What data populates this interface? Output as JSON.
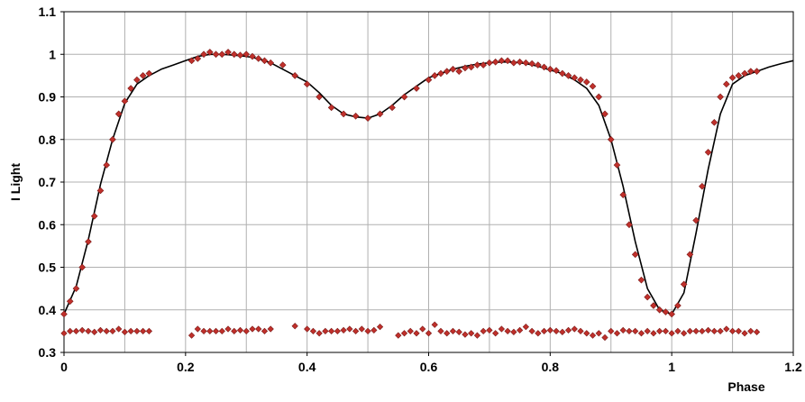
{
  "chart_data": {
    "type": "scatter",
    "title": "",
    "xlabel": "Phase",
    "ylabel": "I Light",
    "xlim": [
      0,
      1.2
    ],
    "ylim": [
      0.3,
      1.1
    ],
    "xticks": [
      0,
      0.2,
      0.4,
      0.6,
      0.8,
      1,
      1.2
    ],
    "xtick_labels": [
      "0",
      "0.2",
      "0.4",
      "0.6",
      "0.8",
      "1",
      "1.2"
    ],
    "yticks": [
      0.3,
      0.4,
      0.5,
      0.6,
      0.7,
      0.8,
      0.9,
      1,
      1.1
    ],
    "ytick_labels": [
      "0.3",
      "0.4",
      "0.5",
      "0.6",
      "0.7",
      "0.8",
      "0.9",
      "1",
      "1.1"
    ],
    "grid": true,
    "colors": {
      "marker_fill": "#c0302b",
      "marker_edge": "#7a1a18",
      "curve": "#000000",
      "grid": "#b0b0b0"
    },
    "series": [
      {
        "kind": "line",
        "x": [
          0,
          0.02,
          0.04,
          0.06,
          0.08,
          0.1,
          0.12,
          0.14,
          0.16,
          0.18,
          0.2,
          0.22,
          0.24,
          0.26,
          0.28,
          0.3,
          0.32,
          0.34,
          0.36,
          0.38,
          0.4,
          0.42,
          0.44,
          0.46,
          0.48,
          0.5,
          0.52,
          0.54,
          0.56,
          0.58,
          0.6,
          0.62,
          0.64,
          0.66,
          0.68,
          0.7,
          0.72,
          0.74,
          0.76,
          0.78,
          0.8,
          0.82,
          0.84,
          0.86,
          0.88,
          0.9,
          0.92,
          0.94,
          0.96,
          0.98,
          1.0,
          1.02,
          1.04,
          1.06,
          1.08,
          1.1,
          1.12,
          1.14,
          1.16,
          1.18,
          1.2
        ],
        "y": [
          0.39,
          0.455,
          0.565,
          0.695,
          0.8,
          0.885,
          0.93,
          0.95,
          0.965,
          0.975,
          0.985,
          0.995,
          1.0,
          1.0,
          0.998,
          0.995,
          0.99,
          0.98,
          0.965,
          0.95,
          0.935,
          0.91,
          0.88,
          0.86,
          0.853,
          0.85,
          0.86,
          0.88,
          0.905,
          0.925,
          0.945,
          0.955,
          0.965,
          0.972,
          0.977,
          0.98,
          0.982,
          0.982,
          0.978,
          0.972,
          0.963,
          0.955,
          0.94,
          0.92,
          0.88,
          0.8,
          0.69,
          0.56,
          0.45,
          0.4,
          0.39,
          0.44,
          0.58,
          0.73,
          0.86,
          0.93,
          0.95,
          0.96,
          0.97,
          0.978,
          0.985
        ]
      },
      {
        "kind": "scatter",
        "x": [
          0.0,
          0.01,
          0.02,
          0.03,
          0.04,
          0.05,
          0.06,
          0.07,
          0.08,
          0.09,
          0.1,
          0.11,
          0.12,
          0.13,
          0.14,
          0.21,
          0.22,
          0.23,
          0.24,
          0.25,
          0.26,
          0.27,
          0.28,
          0.29,
          0.3,
          0.31,
          0.32,
          0.33,
          0.34,
          0.36,
          0.38,
          0.4,
          0.42,
          0.44,
          0.46,
          0.48,
          0.5,
          0.52,
          0.54,
          0.56,
          0.58,
          0.6,
          0.61,
          0.62,
          0.63,
          0.64,
          0.65,
          0.66,
          0.67,
          0.68,
          0.69,
          0.7,
          0.71,
          0.72,
          0.73,
          0.74,
          0.75,
          0.76,
          0.77,
          0.78,
          0.79,
          0.8,
          0.81,
          0.82,
          0.83,
          0.84,
          0.85,
          0.86,
          0.87,
          0.88,
          0.89,
          0.9,
          0.91,
          0.92,
          0.93,
          0.94,
          0.95,
          0.96,
          0.97,
          0.98,
          0.99,
          1.0,
          1.01,
          1.02,
          1.03,
          1.04,
          1.05,
          1.06,
          1.07,
          1.08,
          1.09,
          1.1,
          1.11,
          1.12,
          1.13,
          1.14
        ],
        "y": [
          0.39,
          0.42,
          0.45,
          0.5,
          0.56,
          0.62,
          0.68,
          0.74,
          0.8,
          0.86,
          0.89,
          0.92,
          0.94,
          0.95,
          0.955,
          0.985,
          0.99,
          1.0,
          1.005,
          1.0,
          1.0,
          1.005,
          1.0,
          0.998,
          1.0,
          0.995,
          0.99,
          0.985,
          0.98,
          0.975,
          0.95,
          0.93,
          0.9,
          0.875,
          0.86,
          0.855,
          0.85,
          0.86,
          0.875,
          0.9,
          0.92,
          0.94,
          0.95,
          0.955,
          0.96,
          0.965,
          0.96,
          0.968,
          0.97,
          0.975,
          0.975,
          0.98,
          0.982,
          0.985,
          0.985,
          0.98,
          0.982,
          0.98,
          0.978,
          0.975,
          0.97,
          0.965,
          0.962,
          0.955,
          0.95,
          0.945,
          0.94,
          0.935,
          0.925,
          0.9,
          0.86,
          0.8,
          0.74,
          0.67,
          0.6,
          0.53,
          0.47,
          0.43,
          0.41,
          0.4,
          0.395,
          0.39,
          0.41,
          0.46,
          0.53,
          0.61,
          0.69,
          0.77,
          0.84,
          0.9,
          0.93,
          0.945,
          0.95,
          0.955,
          0.96,
          0.96
        ]
      },
      {
        "kind": "residuals",
        "x": [
          0.0,
          0.01,
          0.02,
          0.03,
          0.04,
          0.05,
          0.06,
          0.07,
          0.08,
          0.09,
          0.1,
          0.11,
          0.12,
          0.13,
          0.14,
          0.21,
          0.22,
          0.23,
          0.24,
          0.25,
          0.26,
          0.27,
          0.28,
          0.29,
          0.3,
          0.31,
          0.32,
          0.33,
          0.34,
          0.38,
          0.4,
          0.41,
          0.42,
          0.43,
          0.44,
          0.45,
          0.46,
          0.47,
          0.48,
          0.49,
          0.5,
          0.51,
          0.52,
          0.55,
          0.56,
          0.57,
          0.58,
          0.59,
          0.6,
          0.61,
          0.62,
          0.63,
          0.64,
          0.65,
          0.66,
          0.67,
          0.68,
          0.69,
          0.7,
          0.71,
          0.72,
          0.73,
          0.74,
          0.75,
          0.76,
          0.77,
          0.78,
          0.79,
          0.8,
          0.81,
          0.82,
          0.83,
          0.84,
          0.85,
          0.86,
          0.87,
          0.88,
          0.89,
          0.9,
          0.91,
          0.92,
          0.93,
          0.94,
          0.95,
          0.96,
          0.97,
          0.98,
          0.99,
          1.0,
          1.01,
          1.02,
          1.03,
          1.04,
          1.05,
          1.06,
          1.07,
          1.08,
          1.09,
          1.1,
          1.11,
          1.12,
          1.13,
          1.14
        ],
        "y": [
          0.345,
          0.35,
          0.35,
          0.352,
          0.35,
          0.348,
          0.352,
          0.35,
          0.35,
          0.355,
          0.348,
          0.35,
          0.35,
          0.35,
          0.35,
          0.34,
          0.355,
          0.35,
          0.35,
          0.35,
          0.35,
          0.355,
          0.35,
          0.352,
          0.35,
          0.355,
          0.355,
          0.35,
          0.355,
          0.362,
          0.355,
          0.35,
          0.345,
          0.35,
          0.35,
          0.35,
          0.352,
          0.355,
          0.35,
          0.355,
          0.35,
          0.352,
          0.36,
          0.34,
          0.345,
          0.35,
          0.345,
          0.355,
          0.345,
          0.365,
          0.35,
          0.345,
          0.35,
          0.348,
          0.342,
          0.345,
          0.34,
          0.35,
          0.352,
          0.345,
          0.355,
          0.35,
          0.348,
          0.352,
          0.36,
          0.35,
          0.345,
          0.35,
          0.352,
          0.35,
          0.348,
          0.352,
          0.355,
          0.35,
          0.345,
          0.34,
          0.345,
          0.335,
          0.35,
          0.345,
          0.352,
          0.35,
          0.35,
          0.345,
          0.35,
          0.345,
          0.35,
          0.35,
          0.345,
          0.35,
          0.345,
          0.35,
          0.35,
          0.35,
          0.352,
          0.35,
          0.35,
          0.355,
          0.35,
          0.35,
          0.345,
          0.35,
          0.348
        ]
      }
    ]
  }
}
